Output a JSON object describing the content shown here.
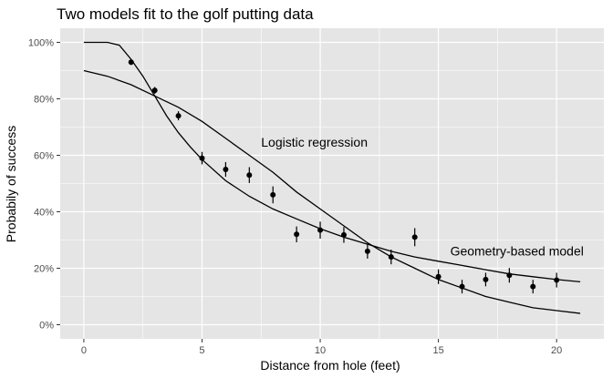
{
  "chart_data": {
    "type": "scatter",
    "title": "Two models fit to the golf putting data",
    "xlabel": "Distance from hole (feet)",
    "ylabel": "Probabily of success",
    "xlim": [
      -1,
      22
    ],
    "ylim": [
      -0.05,
      1.05
    ],
    "x_ticks": [
      0,
      5,
      10,
      15,
      20
    ],
    "x_tick_labels": [
      "0",
      "5",
      "10",
      "15",
      "20"
    ],
    "y_ticks": [
      0,
      0.2,
      0.4,
      0.6,
      0.8,
      1.0
    ],
    "y_tick_labels": [
      "0%",
      "20%",
      "40%",
      "60%",
      "80%",
      "100%"
    ],
    "grid": true,
    "background": "#e5e5e5",
    "grid_color": "#ffffff",
    "points": {
      "x": [
        2,
        3,
        4,
        5,
        6,
        7,
        8,
        9,
        10,
        11,
        12,
        13,
        14,
        15,
        16,
        17,
        18,
        19,
        20
      ],
      "y": [
        0.93,
        0.83,
        0.74,
        0.59,
        0.55,
        0.53,
        0.46,
        0.32,
        0.335,
        0.318,
        0.26,
        0.24,
        0.31,
        0.17,
        0.135,
        0.16,
        0.175,
        0.135,
        0.158
      ],
      "err": [
        0.01,
        0.012,
        0.016,
        0.022,
        0.026,
        0.028,
        0.03,
        0.028,
        0.03,
        0.028,
        0.026,
        0.026,
        0.032,
        0.026,
        0.024,
        0.024,
        0.026,
        0.024,
        0.026
      ]
    },
    "series": [
      {
        "name": "Logistic regression",
        "x": [
          0,
          1,
          2,
          3,
          4,
          5,
          6,
          7,
          8,
          9,
          10,
          11,
          12,
          13,
          14,
          15,
          16,
          17,
          18,
          19,
          20,
          21
        ],
        "y": [
          0.9,
          0.88,
          0.85,
          0.81,
          0.77,
          0.72,
          0.66,
          0.6,
          0.54,
          0.47,
          0.41,
          0.35,
          0.29,
          0.24,
          0.2,
          0.16,
          0.13,
          0.1,
          0.08,
          0.06,
          0.05,
          0.04
        ]
      },
      {
        "name": "Geometry-based model",
        "x": [
          0,
          1,
          1.5,
          2,
          2.5,
          3,
          3.5,
          4,
          4.5,
          5,
          6,
          7,
          8,
          9,
          10,
          11,
          12,
          13,
          14,
          15,
          16,
          17,
          18,
          19,
          20,
          21
        ],
        "y": [
          1.0,
          1.0,
          0.99,
          0.94,
          0.88,
          0.81,
          0.74,
          0.68,
          0.63,
          0.585,
          0.51,
          0.455,
          0.41,
          0.375,
          0.34,
          0.31,
          0.285,
          0.26,
          0.24,
          0.225,
          0.21,
          0.195,
          0.18,
          0.17,
          0.16,
          0.152
        ]
      }
    ],
    "annotations": [
      {
        "text": "Logistic regression",
        "x": 7.5,
        "y": 0.63
      },
      {
        "text": "Geometry-based model",
        "x": 15.5,
        "y": 0.245
      }
    ]
  }
}
